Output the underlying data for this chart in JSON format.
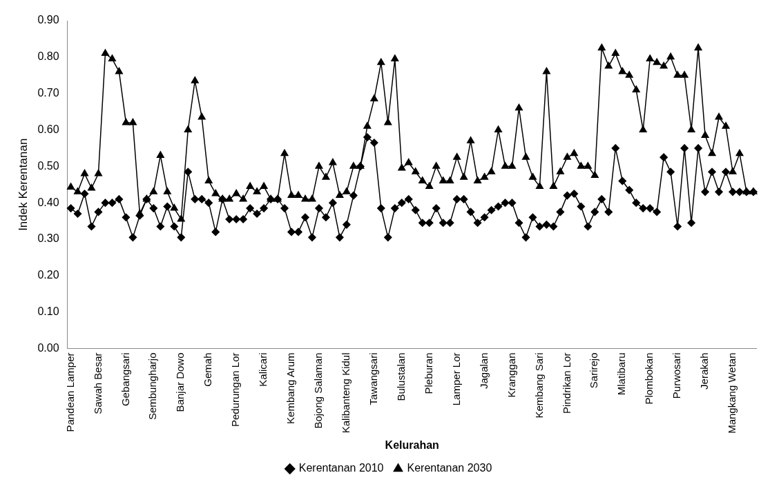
{
  "chart_data": {
    "type": "line",
    "xlabel": "Kelurahan",
    "ylabel": "Indek Kerentanan",
    "categories": [
      "Pandean Lamper",
      null,
      null,
      null,
      "Sawah Besar",
      null,
      null,
      null,
      "Gebangsari",
      null,
      null,
      null,
      "Sembungharjo",
      null,
      null,
      null,
      "Banjar Dowo",
      null,
      null,
      null,
      "Gemah",
      null,
      null,
      null,
      "Pedurungan Lor",
      null,
      null,
      null,
      "Kalicari",
      null,
      null,
      null,
      "Kembang Arum",
      null,
      null,
      null,
      "Bojong Salaman",
      null,
      null,
      null,
      "Kalibanteng Kidul",
      null,
      null,
      null,
      "Tawangsari",
      null,
      null,
      null,
      "Bulustalan",
      null,
      null,
      null,
      "Pleburan",
      null,
      null,
      null,
      "Lamper Lor",
      null,
      null,
      null,
      "Jagalan",
      null,
      null,
      null,
      "Kranggan",
      null,
      null,
      null,
      "Kembang Sari",
      null,
      null,
      null,
      "Pindrikan Lor",
      null,
      null,
      null,
      "Sarirejo",
      null,
      null,
      null,
      "Mlatibaru",
      null,
      null,
      null,
      "Plombokan",
      null,
      null,
      null,
      "Purwosari",
      null,
      null,
      null,
      "Jerakah",
      null,
      null,
      null,
      "Mangkang Wetan",
      null,
      null,
      null
    ],
    "series": [
      {
        "name": "Kerentanan 2010",
        "color": "#000000",
        "marker": "diamond",
        "values": [
          0.385,
          0.37,
          0.425,
          0.335,
          0.375,
          0.4,
          0.4,
          0.41,
          0.36,
          0.305,
          0.365,
          0.41,
          0.385,
          0.335,
          0.39,
          0.335,
          0.305,
          0.485,
          0.41,
          0.41,
          0.4,
          0.32,
          0.41,
          0.355,
          0.355,
          0.355,
          0.385,
          0.37,
          0.385,
          0.41,
          0.41,
          0.385,
          0.32,
          0.32,
          0.36,
          0.305,
          0.385,
          0.36,
          0.4,
          0.305,
          0.34,
          0.42,
          0.5,
          0.58,
          0.565,
          0.385,
          0.305,
          0.385,
          0.4,
          0.41,
          0.38,
          0.345,
          0.345,
          0.385,
          0.345,
          0.345,
          0.41,
          0.41,
          0.375,
          0.345,
          0.36,
          0.38,
          0.39,
          0.4,
          0.4,
          0.345,
          0.305,
          0.36,
          0.335,
          0.34,
          0.335,
          0.375,
          0.42,
          0.425,
          0.39,
          0.335,
          0.375,
          0.41,
          0.375,
          0.55,
          0.46,
          0.435,
          0.4,
          0.385,
          0.385,
          0.375,
          0.525,
          0.485,
          0.335,
          0.55,
          0.345,
          0.55,
          0.43,
          0.485,
          0.43,
          0.485,
          0.43,
          0.43,
          0.43,
          0.43
        ]
      },
      {
        "name": "Kerentanan 2030",
        "color": "#000000",
        "marker": "triangle",
        "values": [
          0.443,
          0.43,
          0.48,
          0.44,
          0.48,
          0.81,
          0.795,
          0.76,
          0.62,
          0.62,
          0.37,
          0.41,
          0.43,
          0.53,
          0.43,
          0.385,
          0.355,
          0.6,
          0.735,
          0.635,
          0.46,
          0.425,
          0.41,
          0.41,
          0.425,
          0.41,
          0.445,
          0.43,
          0.445,
          0.41,
          0.41,
          0.535,
          0.42,
          0.42,
          0.41,
          0.41,
          0.5,
          0.47,
          0.51,
          0.42,
          0.43,
          0.5,
          0.5,
          0.61,
          0.685,
          0.785,
          0.62,
          0.795,
          0.495,
          0.51,
          0.485,
          0.46,
          0.445,
          0.5,
          0.46,
          0.46,
          0.525,
          0.47,
          0.57,
          0.46,
          0.47,
          0.485,
          0.6,
          0.5,
          0.5,
          0.66,
          0.525,
          0.47,
          0.445,
          0.76,
          0.445,
          0.485,
          0.525,
          0.535,
          0.5,
          0.5,
          0.475,
          0.825,
          0.775,
          0.81,
          0.76,
          0.75,
          0.71,
          0.6,
          0.795,
          0.785,
          0.775,
          0.8,
          0.75,
          0.75,
          0.6,
          0.825,
          0.585,
          0.535,
          0.635,
          0.61,
          0.485,
          0.535,
          0.43,
          0.43
        ]
      }
    ],
    "ylim": [
      0,
      0.9
    ],
    "yticks": [
      {
        "value": 0,
        "label": "0.00"
      },
      {
        "value": 0.1,
        "label": "0.10"
      },
      {
        "value": 0.2,
        "label": "0.20"
      },
      {
        "value": 0.3,
        "label": "0.30"
      },
      {
        "value": 0.4,
        "label": "0.40"
      },
      {
        "value": 0.5,
        "label": "0.50"
      },
      {
        "value": 0.6,
        "label": "0.60"
      },
      {
        "value": 0.7,
        "label": "0.70"
      },
      {
        "value": 0.8,
        "label": "0.80"
      },
      {
        "value": 0.9,
        "label": "0.90"
      }
    ],
    "grid": false,
    "legend": "bottom",
    "line_style": "solid"
  }
}
